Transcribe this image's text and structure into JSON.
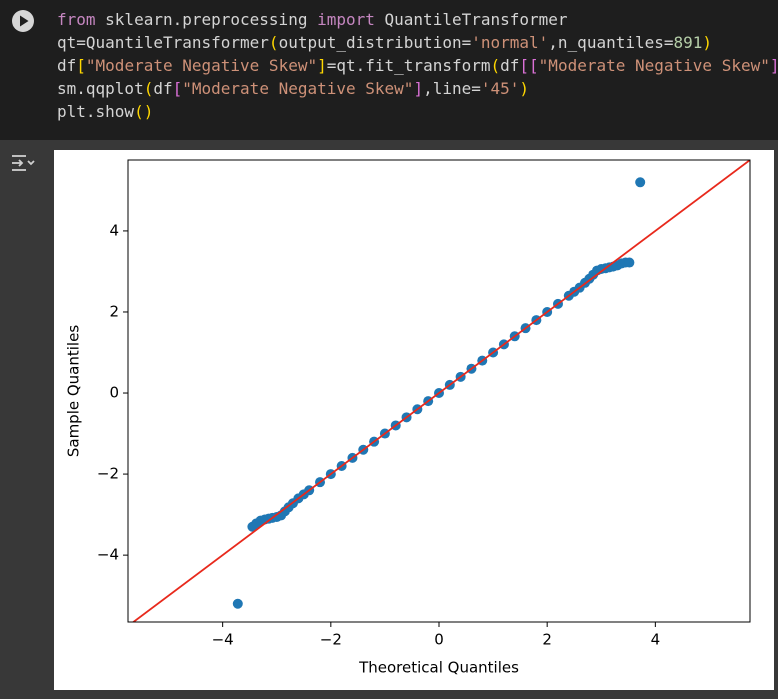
{
  "code": {
    "lines": [
      [
        {
          "text": "from",
          "color": "#c586c0"
        },
        {
          "text": " sklearn.preprocessing ",
          "color": "#d4d4d4"
        },
        {
          "text": "import",
          "color": "#c586c0"
        },
        {
          "text": " QuantileTransformer",
          "color": "#d4d4d4"
        }
      ],
      [
        {
          "text": "qt=QuantileTransformer",
          "color": "#d4d4d4"
        },
        {
          "text": "(",
          "color": "#ffd700"
        },
        {
          "text": "output_distribution=",
          "color": "#d4d4d4"
        },
        {
          "text": "'normal'",
          "color": "#ce9178"
        },
        {
          "text": ",n_quantiles=",
          "color": "#d4d4d4"
        },
        {
          "text": "891",
          "color": "#b5cea8"
        },
        {
          "text": ")",
          "color": "#ffd700"
        }
      ],
      [
        {
          "text": "df",
          "color": "#d4d4d4"
        },
        {
          "text": "[",
          "color": "#ffd700"
        },
        {
          "text": "\"Moderate Negative Skew\"",
          "color": "#ce9178"
        },
        {
          "text": "]",
          "color": "#ffd700"
        },
        {
          "text": "=qt.fit_transform",
          "color": "#d4d4d4"
        },
        {
          "text": "(",
          "color": "#ffd700"
        },
        {
          "text": "df",
          "color": "#d4d4d4"
        },
        {
          "text": "[[",
          "color": "#da70d6"
        },
        {
          "text": "\"Moderate Negative Skew\"",
          "color": "#ce9178"
        },
        {
          "text": "]",
          "color": "#da70d6"
        }
      ],
      [
        {
          "text": "sm.qqplot",
          "color": "#d4d4d4"
        },
        {
          "text": "(",
          "color": "#ffd700"
        },
        {
          "text": "df",
          "color": "#d4d4d4"
        },
        {
          "text": "[",
          "color": "#da70d6"
        },
        {
          "text": "\"Moderate Negative Skew\"",
          "color": "#ce9178"
        },
        {
          "text": "]",
          "color": "#da70d6"
        },
        {
          "text": ",line=",
          "color": "#d4d4d4"
        },
        {
          "text": "'45'",
          "color": "#ce9178"
        },
        {
          "text": ")",
          "color": "#ffd700"
        }
      ],
      [
        {
          "text": "plt.show",
          "color": "#d4d4d4"
        },
        {
          "text": "()",
          "color": "#ffd700"
        }
      ]
    ]
  },
  "chart_data": {
    "type": "scatter",
    "x_label": "Theoretical Quantiles",
    "y_label": "Sample Quantiles",
    "color": "#1f77b4",
    "line": "45",
    "line_color": "#e8291c",
    "xlim": [
      -5.75,
      5.75
    ],
    "ylim": [
      -5.65,
      5.75
    ],
    "xticks": [
      {
        "value": -4,
        "label": "−4"
      },
      {
        "value": -2,
        "label": "−2"
      },
      0,
      2,
      4
    ],
    "yticks": [
      {
        "value": -4,
        "label": "−4"
      },
      {
        "value": -2,
        "label": "−2"
      },
      0,
      2,
      4
    ],
    "x": [
      -3.72,
      -3.45,
      -3.38,
      -3.3,
      -3.22,
      -3.15,
      -3.08,
      -3.0,
      -2.92,
      -2.85,
      -2.78,
      -2.7,
      -2.6,
      -2.5,
      -2.4,
      -2.2,
      -2.0,
      -1.8,
      -1.6,
      -1.4,
      -1.2,
      -1.0,
      -0.8,
      -0.6,
      -0.4,
      -0.2,
      0,
      0.2,
      0.4,
      0.6,
      0.8,
      1.0,
      1.2,
      1.4,
      1.6,
      1.8,
      2.0,
      2.2,
      2.4,
      2.5,
      2.6,
      2.7,
      2.78,
      2.85,
      2.92,
      3.0,
      3.08,
      3.15,
      3.22,
      3.3,
      3.38,
      3.45,
      3.52,
      3.72
    ],
    "y": [
      -5.2,
      -3.3,
      -3.22,
      -3.15,
      -3.12,
      -3.1,
      -3.08,
      -3.06,
      -3.02,
      -2.92,
      -2.82,
      -2.72,
      -2.6,
      -2.5,
      -2.4,
      -2.2,
      -2.0,
      -1.8,
      -1.6,
      -1.4,
      -1.2,
      -1.0,
      -0.8,
      -0.6,
      -0.4,
      -0.2,
      0,
      0.2,
      0.4,
      0.6,
      0.8,
      1.0,
      1.2,
      1.4,
      1.6,
      1.8,
      2.0,
      2.2,
      2.4,
      2.5,
      2.6,
      2.72,
      2.82,
      2.92,
      3.02,
      3.06,
      3.08,
      3.1,
      3.12,
      3.15,
      3.2,
      3.22,
      3.22,
      5.2
    ]
  }
}
